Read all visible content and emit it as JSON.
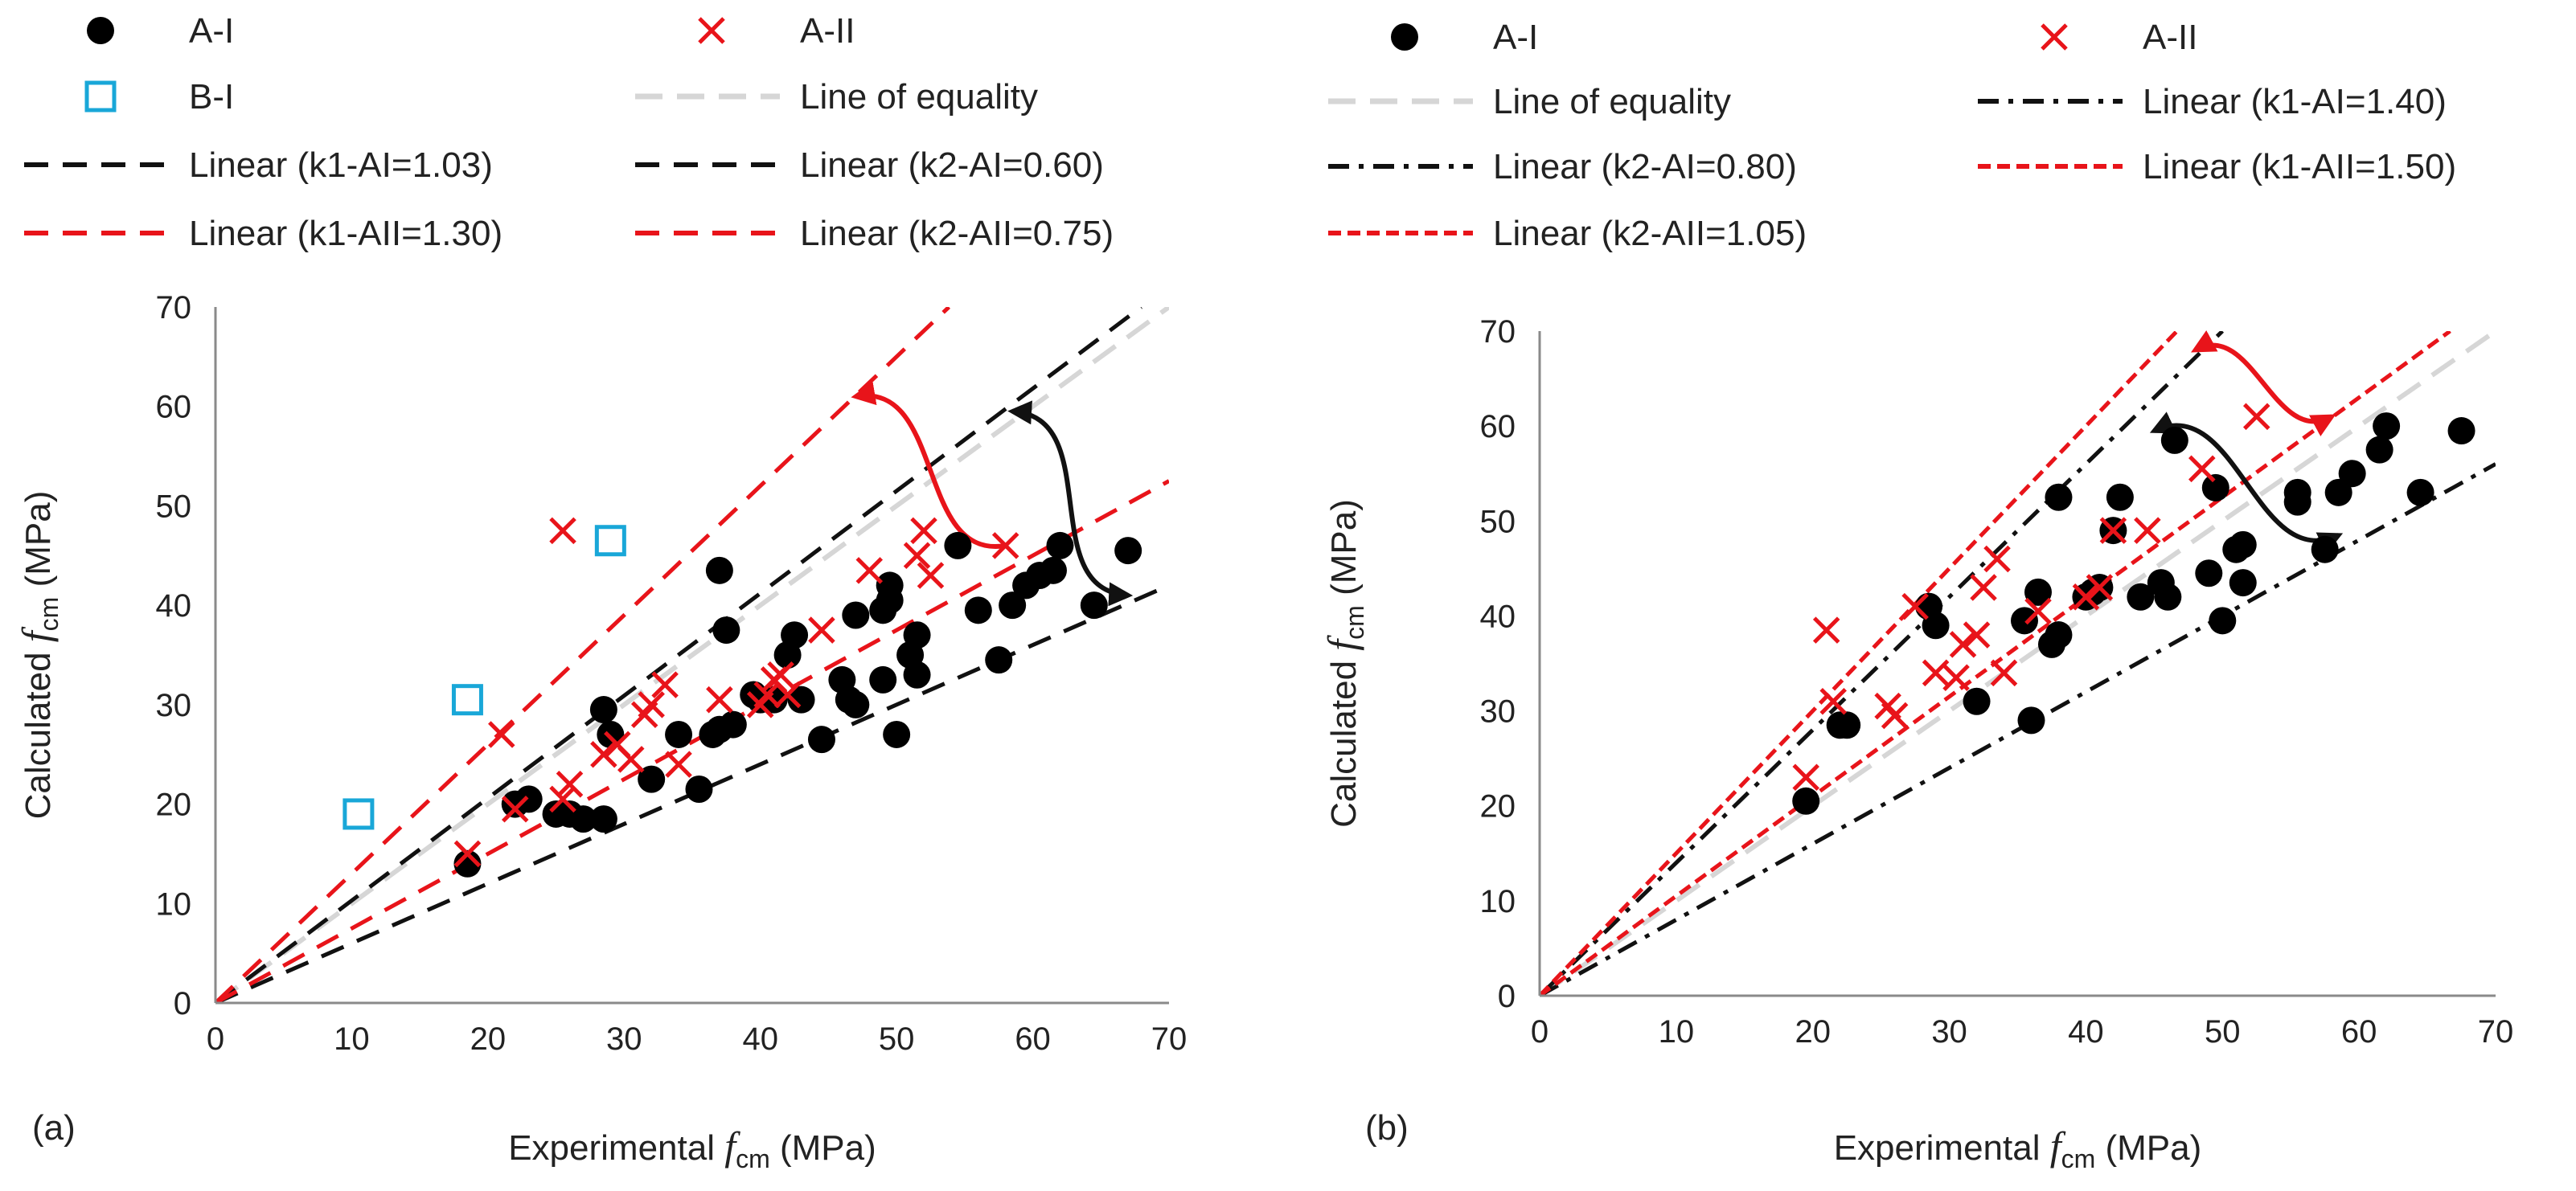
{
  "chart_data": [
    {
      "panel_label": "(a)",
      "type": "scatter",
      "xlabel": {
        "prefix": "Experimental ",
        "var": "f",
        "sub": "cm",
        "suffix": " (MPa)"
      },
      "ylabel": {
        "prefix": "Calculated ",
        "var": "f",
        "sub": "cm",
        "suffix": " (MPa)"
      },
      "xlim": [
        0,
        70
      ],
      "ylim": [
        0,
        70
      ],
      "xticks": [
        "0",
        "10",
        "20",
        "30",
        "40",
        "50",
        "60",
        "70"
      ],
      "yticks": [
        "0",
        "10",
        "20",
        "30",
        "40",
        "50",
        "60",
        "70"
      ],
      "grid": false,
      "legend": [
        {
          "label": "A-I",
          "kind": "dot"
        },
        {
          "label": "A-II",
          "kind": "cross"
        },
        {
          "label": "B-I",
          "kind": "square"
        },
        {
          "label": "Line of equality",
          "kind": "equality"
        },
        {
          "label": "Linear (k1-AI=1.03)",
          "kind": "black-dash"
        },
        {
          "label": "Linear (k2-AI=0.60)",
          "kind": "black-dash"
        },
        {
          "label": "Linear (k1-AII=1.30)",
          "kind": "red-dash"
        },
        {
          "label": "Linear (k2-AII=0.75)",
          "kind": "red-dash"
        }
      ],
      "lines": [
        {
          "name": "Line of equality",
          "slope": 1.0,
          "kind": "equality"
        },
        {
          "name": "Linear (k1-AI=1.03)",
          "slope": 1.03,
          "kind": "black-dash"
        },
        {
          "name": "Linear (k2-AI=0.60)",
          "slope": 0.6,
          "kind": "black-dash"
        },
        {
          "name": "Linear (k1-AII=1.30)",
          "slope": 1.3,
          "kind": "red-dash"
        },
        {
          "name": "Linear (k2-AII=0.75)",
          "slope": 0.75,
          "kind": "red-dash"
        }
      ],
      "series": [
        {
          "name": "A-I",
          "marker": "dot",
          "points": [
            [
              18.5,
              14
            ],
            [
              22,
              20
            ],
            [
              23,
              20.5
            ],
            [
              25,
              19
            ],
            [
              26,
              19
            ],
            [
              27,
              18.5
            ],
            [
              28.5,
              29.5
            ],
            [
              29,
              27
            ],
            [
              28.5,
              18.5
            ],
            [
              32,
              22.5
            ],
            [
              34,
              27
            ],
            [
              35.5,
              21.5
            ],
            [
              36.5,
              27
            ],
            [
              37,
              27.5
            ],
            [
              38,
              28
            ],
            [
              37.5,
              37.5
            ],
            [
              37,
              43.5
            ],
            [
              39.5,
              31
            ],
            [
              40,
              30.5
            ],
            [
              41,
              30.5
            ],
            [
              42,
              35
            ],
            [
              42.5,
              37
            ],
            [
              43,
              30.5
            ],
            [
              44.5,
              26.5
            ],
            [
              46,
              32.5
            ],
            [
              46.5,
              30.5
            ],
            [
              47,
              30
            ],
            [
              47,
              39
            ],
            [
              49,
              32.5
            ],
            [
              49,
              39.5
            ],
            [
              49.5,
              40.5
            ],
            [
              49.5,
              42
            ],
            [
              50,
              27
            ],
            [
              51,
              35
            ],
            [
              51.5,
              33
            ],
            [
              51.5,
              37
            ],
            [
              54.5,
              46
            ],
            [
              56,
              39.5
            ],
            [
              57.5,
              34.5
            ],
            [
              58.5,
              40
            ],
            [
              59.5,
              42
            ],
            [
              60.5,
              43
            ],
            [
              61.5,
              43.5
            ],
            [
              62,
              46
            ],
            [
              64.5,
              40
            ],
            [
              67,
              45.5
            ]
          ]
        },
        {
          "name": "A-II",
          "marker": "cross",
          "points": [
            [
              18.5,
              15
            ],
            [
              21,
              27
            ],
            [
              22,
              19.5
            ],
            [
              25.5,
              20.5
            ],
            [
              26,
              22
            ],
            [
              25.5,
              47.5
            ],
            [
              28.5,
              25
            ],
            [
              29.5,
              26
            ],
            [
              30.5,
              24.5
            ],
            [
              31.5,
              29
            ],
            [
              32,
              30
            ],
            [
              33,
              32
            ],
            [
              34,
              24
            ],
            [
              37,
              30.5
            ],
            [
              40,
              30
            ],
            [
              40.5,
              31
            ],
            [
              41,
              32.5
            ],
            [
              41.5,
              33
            ],
            [
              42,
              31
            ],
            [
              44.5,
              37.5
            ],
            [
              48,
              43.5
            ],
            [
              51.5,
              45
            ],
            [
              52,
              47.5
            ],
            [
              52.5,
              43
            ],
            [
              58,
              46
            ]
          ]
        },
        {
          "name": "B-I",
          "marker": "square",
          "points": [
            [
              10.5,
              19
            ],
            [
              18.5,
              30.5
            ],
            [
              29,
              46.5
            ]
          ]
        }
      ],
      "annotations": [
        {
          "type": "curved-arrow",
          "color": "#e8141a",
          "from": [
            58,
            46
          ],
          "to": [
            47,
            61
          ]
        },
        {
          "type": "double-curved-arrow",
          "color": "#111111",
          "from": [
            58.5,
            59.5
          ],
          "to": [
            67,
            41
          ]
        }
      ]
    },
    {
      "panel_label": "(b)",
      "type": "scatter",
      "xlabel": {
        "prefix": "Experimental ",
        "var": "f",
        "sub": "cm",
        "suffix": " (MPa)"
      },
      "ylabel": {
        "prefix": "Calculated ",
        "var": "f",
        "sub": "cm",
        "suffix": " (MPa)"
      },
      "xlim": [
        0,
        70
      ],
      "ylim": [
        0,
        70
      ],
      "xticks": [
        "0",
        "10",
        "20",
        "30",
        "40",
        "50",
        "60",
        "70"
      ],
      "yticks": [
        "0",
        "10",
        "20",
        "30",
        "40",
        "50",
        "60",
        "70"
      ],
      "grid": false,
      "legend": [
        {
          "label": "A-I",
          "kind": "dot"
        },
        {
          "label": "A-II",
          "kind": "cross"
        },
        {
          "label": "Line of equality",
          "kind": "equality"
        },
        {
          "label": "Linear (k1-AI=1.40)",
          "kind": "black-dashdot"
        },
        {
          "label": "Linear (k2-AI=0.80)",
          "kind": "black-dashdot"
        },
        {
          "label": "Linear (k1-AII=1.50)",
          "kind": "red-short"
        },
        {
          "label": "Linear (k2-AII=1.05)",
          "kind": "red-short"
        }
      ],
      "lines": [
        {
          "name": "Line of equality",
          "slope": 1.0,
          "kind": "equality"
        },
        {
          "name": "Linear (k1-AI=1.40)",
          "slope": 1.4,
          "kind": "black-dashdot"
        },
        {
          "name": "Linear (k2-AI=0.80)",
          "slope": 0.8,
          "kind": "black-dashdot"
        },
        {
          "name": "Linear (k1-AII=1.50)",
          "slope": 1.5,
          "kind": "red-short"
        },
        {
          "name": "Linear (k2-AII=1.05)",
          "slope": 1.05,
          "kind": "red-short"
        }
      ],
      "series": [
        {
          "name": "A-I",
          "marker": "dot",
          "points": [
            [
              19.5,
              20.5
            ],
            [
              22,
              28.5
            ],
            [
              22.5,
              28.5
            ],
            [
              28.5,
              41
            ],
            [
              29,
              39
            ],
            [
              32,
              31
            ],
            [
              35.5,
              39.5
            ],
            [
              36,
              29
            ],
            [
              36.5,
              42.5
            ],
            [
              37.5,
              37
            ],
            [
              38,
              38
            ],
            [
              38,
              52.5
            ],
            [
              40,
              42
            ],
            [
              40.5,
              42.5
            ],
            [
              41,
              43
            ],
            [
              42,
              49
            ],
            [
              42.5,
              52.5
            ],
            [
              44,
              42
            ],
            [
              45.5,
              43.5
            ],
            [
              46,
              42
            ],
            [
              46.5,
              58.5
            ],
            [
              49,
              44.5
            ],
            [
              49.5,
              53.5
            ],
            [
              50,
              39.5
            ],
            [
              51,
              47
            ],
            [
              51.5,
              47.5
            ],
            [
              51.5,
              43.5
            ],
            [
              55.5,
              53
            ],
            [
              55.5,
              52
            ],
            [
              57.5,
              47
            ],
            [
              58.5,
              53
            ],
            [
              59.5,
              55
            ],
            [
              61.5,
              57.5
            ],
            [
              62,
              60
            ],
            [
              64.5,
              53
            ],
            [
              67.5,
              59.5
            ]
          ]
        },
        {
          "name": "A-II",
          "marker": "cross",
          "points": [
            [
              19.5,
              23
            ],
            [
              21,
              38.5
            ],
            [
              21.5,
              31
            ],
            [
              25.5,
              30.5
            ],
            [
              26,
              29.5
            ],
            [
              27.5,
              41
            ],
            [
              29,
              34
            ],
            [
              30.5,
              33.5
            ],
            [
              31,
              37
            ],
            [
              32,
              38
            ],
            [
              32.5,
              43
            ],
            [
              33.5,
              46
            ],
            [
              34,
              34
            ],
            [
              36.5,
              40.5
            ],
            [
              40,
              42
            ],
            [
              41,
              43
            ],
            [
              42,
              49
            ],
            [
              44.5,
              49
            ],
            [
              48.5,
              55.5
            ],
            [
              52.5,
              61
            ]
          ]
        }
      ],
      "annotations": [
        {
          "type": "double-curved-arrow",
          "color": "#e8141a",
          "from": [
            48,
            68
          ],
          "to": [
            58,
            61
          ]
        },
        {
          "type": "double-curved-arrow",
          "color": "#111111",
          "from": [
            45,
            59.5
          ],
          "to": [
            58.5,
            48.5
          ]
        }
      ]
    }
  ]
}
